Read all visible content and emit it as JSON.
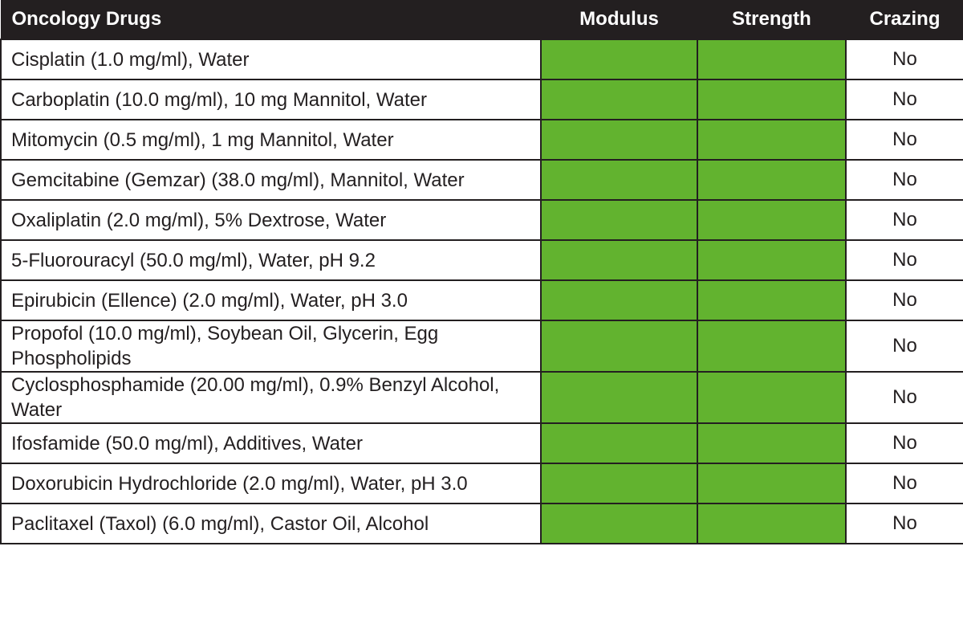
{
  "table": {
    "headers": {
      "drug": "Oncology Drugs",
      "modulus": "Modulus",
      "strength": "Strength",
      "crazing": "Crazing"
    },
    "colors": {
      "header_bg": "#231f20",
      "header_text": "#ffffff",
      "pass_fill": "#62b32f",
      "border": "#231f20"
    },
    "rows": [
      {
        "drug": "Cisplatin (1.0 mg/ml), Water",
        "modulus": "pass",
        "strength": "pass",
        "crazing": "No"
      },
      {
        "drug": "Carboplatin (10.0 mg/ml), 10 mg Mannitol, Water",
        "modulus": "pass",
        "strength": "pass",
        "crazing": "No"
      },
      {
        "drug": "Mitomycin (0.5 mg/ml), 1 mg Mannitol, Water",
        "modulus": "pass",
        "strength": "pass",
        "crazing": "No"
      },
      {
        "drug": "Gemcitabine (Gemzar) (38.0 mg/ml), Mannitol, Water",
        "modulus": "pass",
        "strength": "pass",
        "crazing": "No"
      },
      {
        "drug": "Oxaliplatin (2.0 mg/ml), 5% Dextrose, Water",
        "modulus": "pass",
        "strength": "pass",
        "crazing": "No"
      },
      {
        "drug": "5-Fluorouracyl (50.0 mg/ml), Water, pH 9.2",
        "modulus": "pass",
        "strength": "pass",
        "crazing": "No"
      },
      {
        "drug": "Epirubicin (Ellence) (2.0 mg/ml), Water, pH 3.0",
        "modulus": "pass",
        "strength": "pass",
        "crazing": "No"
      },
      {
        "drug": "Propofol (10.0 mg/ml), Soybean Oil, Glycerin, Egg Phospholipids",
        "modulus": "pass",
        "strength": "pass",
        "crazing": "No"
      },
      {
        "drug": "Cyclosphosphamide (20.00 mg/ml), 0.9% Benzyl Alcohol, Water",
        "modulus": "pass",
        "strength": "pass",
        "crazing": "No"
      },
      {
        "drug": "Ifosfamide (50.0 mg/ml), Additives, Water",
        "modulus": "pass",
        "strength": "pass",
        "crazing": "No"
      },
      {
        "drug": "Doxorubicin Hydrochloride (2.0 mg/ml), Water, pH 3.0",
        "modulus": "pass",
        "strength": "pass",
        "crazing": "No"
      },
      {
        "drug": "Paclitaxel (Taxol) (6.0 mg/ml), Castor Oil, Alcohol",
        "modulus": "pass",
        "strength": "pass",
        "crazing": "No"
      }
    ]
  }
}
